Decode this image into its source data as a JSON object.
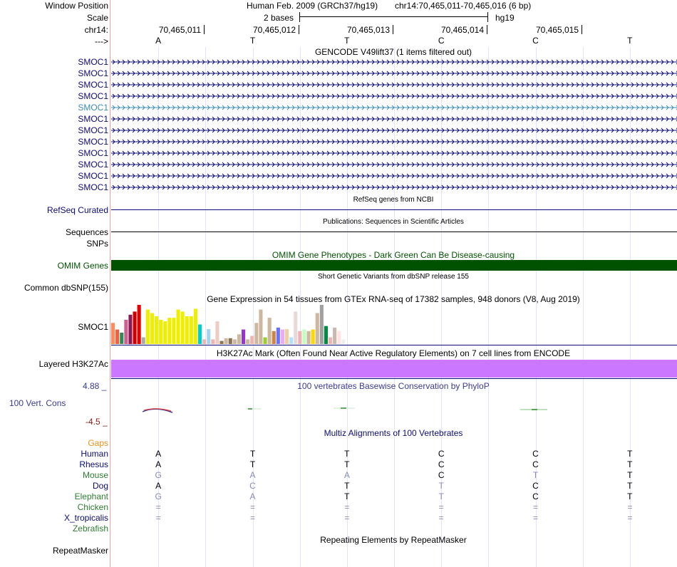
{
  "header": {
    "window_position_label": "Window Position",
    "genome_text": "Human Feb. 2009 (GRCh37/hg19)",
    "position_text": "chr14:70,465,011-70,465,016 (6 bp)",
    "scale_label": "Scale",
    "scale_bases": "2 bases",
    "assembly": "hg19",
    "chrom_label": "chr14:",
    "strand_label": "--->",
    "coords": [
      "70,465,011",
      "70,465,012",
      "70,465,013",
      "70,465,014",
      "70,465,015"
    ],
    "bases": [
      "A",
      "T",
      "T",
      "C",
      "C",
      "T"
    ]
  },
  "gencode": {
    "title": "GENCODE V49lift37 (1 items filtered out)",
    "gene_labels": [
      "SMOC1",
      "SMOC1",
      "SMOC1",
      "SMOC1",
      "SMOC1",
      "SMOC1",
      "SMOC1",
      "SMOC1",
      "SMOC1",
      "SMOC1",
      "SMOC1",
      "SMOC1"
    ],
    "highlight_row": 4,
    "colors": {
      "normal": "#0c0c78",
      "highlight": "#3b8db3"
    }
  },
  "refseq": {
    "title": "RefSeq genes from NCBI",
    "label": "RefSeq Curated",
    "color": "#0c0c78"
  },
  "publications": {
    "title": "Publications: Sequences in Scientific Articles",
    "label": "Sequences"
  },
  "snps": {
    "label": "SNPs"
  },
  "omim": {
    "title": "OMIM Gene Phenotypes - Dark Green Can Be Disease-causing",
    "label": "OMIM Genes",
    "color": "#005200"
  },
  "dbsnp": {
    "title": "Short Genetic Variants from dbSNP release 155",
    "label": "Common dbSNP(155)"
  },
  "gtex": {
    "title": "Gene Expression in 54 tissues from GTEx RNA-seq of 17382 samples, 948 donors (V8, Aug 2019)",
    "label": "SMOC1",
    "bars": [
      {
        "v": 0.54,
        "c": "#ff8c5a"
      },
      {
        "v": 0.37,
        "c": "#ee6040"
      },
      {
        "v": 0.29,
        "c": "#2e8b57"
      },
      {
        "v": 0.62,
        "c": "#cd6090"
      },
      {
        "v": 0.75,
        "c": "#8b1a55"
      },
      {
        "v": 0.83,
        "c": "#cd0000"
      },
      {
        "v": 1.0,
        "c": "#e60000"
      },
      {
        "v": 0.17,
        "c": "#aaaaaa"
      },
      {
        "v": 0.88,
        "c": "#eeee00"
      },
      {
        "v": 0.79,
        "c": "#eeee00"
      },
      {
        "v": 0.71,
        "c": "#eeee00"
      },
      {
        "v": 0.62,
        "c": "#eeee00"
      },
      {
        "v": 0.58,
        "c": "#eeee00"
      },
      {
        "v": 0.67,
        "c": "#eeee00"
      },
      {
        "v": 0.67,
        "c": "#eeee00"
      },
      {
        "v": 0.88,
        "c": "#eeee00"
      },
      {
        "v": 0.83,
        "c": "#eeee00"
      },
      {
        "v": 0.71,
        "c": "#eeee00"
      },
      {
        "v": 0.71,
        "c": "#eeee00"
      },
      {
        "v": 0.9,
        "c": "#eeee00"
      },
      {
        "v": 0.5,
        "c": "#00cdcd"
      },
      {
        "v": 0.12,
        "c": "#eeb4b4"
      },
      {
        "v": 0.38,
        "c": "#a4d3ee"
      },
      {
        "v": 0.12,
        "c": "#eeb4b4"
      },
      {
        "v": 0.58,
        "c": "#eeccc4"
      },
      {
        "v": 0.08,
        "c": "#8b7355"
      },
      {
        "v": 0.15,
        "c": "#cdb79e"
      },
      {
        "v": 0.15,
        "c": "#8b7355"
      },
      {
        "v": 0.12,
        "c": "#cdb79e"
      },
      {
        "v": 0.25,
        "c": "#cdb79e"
      },
      {
        "v": 0.37,
        "c": "#9a32cd"
      },
      {
        "v": 0.12,
        "c": "#cdb79e"
      },
      {
        "v": 0.21,
        "c": "#eeb4b4"
      },
      {
        "v": 0.54,
        "c": "#cdb79e"
      },
      {
        "v": 0.88,
        "c": "#cdb79e"
      },
      {
        "v": 0.17,
        "c": "#9acd32"
      },
      {
        "v": 0.67,
        "c": "#cdb79e"
      },
      {
        "v": 0.33,
        "c": "#cd853f"
      },
      {
        "v": 0.42,
        "c": "#6a70ff"
      },
      {
        "v": 0.37,
        "c": "#eeaaee"
      },
      {
        "v": 0.38,
        "c": "#eecfa1"
      },
      {
        "v": 0.17,
        "c": "#b0e2ff"
      },
      {
        "v": 0.83,
        "c": "#e8d8d8"
      },
      {
        "v": 0.33,
        "c": "#eeb4b4"
      },
      {
        "v": 0.37,
        "c": "#c1ffc1"
      },
      {
        "v": 0.33,
        "c": "#cdb79e"
      },
      {
        "v": 0.37,
        "c": "#ffd700"
      },
      {
        "v": 0.79,
        "c": "#cdb79e"
      },
      {
        "v": 1.0,
        "c": "#a0a0a0"
      },
      {
        "v": 0.46,
        "c": "#008b45"
      },
      {
        "v": 0.17,
        "c": "#eeb4b4"
      },
      {
        "v": 0.42,
        "c": "#c8b8b0"
      },
      {
        "v": 0.33,
        "c": "#ffe4e1"
      },
      {
        "v": 0.12,
        "c": "#eeeeee"
      }
    ]
  },
  "h3k27ac": {
    "title": "H3K27Ac Mark (Often Found Near Active Regulatory Elements) on 7 cell lines from ENCODE",
    "label": "Layered H3K27Ac",
    "color": "#cc77ff"
  },
  "phylop": {
    "title": "100 vertebrates Basewise Conservation by PhyloP",
    "label": "100 Vert. Cons",
    "max_label": "4.88 _",
    "min_label": "-4.5 _",
    "title_color": "#3a3a9a",
    "max_color": "#3a3a9a",
    "min_color": "#8b1a1a"
  },
  "multiz": {
    "title": "Multiz Alignments of 100 Vertebrates",
    "title_color": "#0c0c78",
    "gaps_label": "Gaps",
    "gaps_color": "#e8901a",
    "species": [
      {
        "name": "Human",
        "color": "#0c0c78",
        "bases": [
          "A",
          "T",
          "T",
          "C",
          "C",
          "T"
        ]
      },
      {
        "name": "Rhesus",
        "color": "#0c0c78",
        "bases": [
          "A",
          "T",
          "T",
          "C",
          "C",
          "T"
        ]
      },
      {
        "name": "Mouse",
        "color": "#2e7d32",
        "bases": [
          "G",
          "A",
          "A",
          "C",
          "T",
          "T"
        ]
      },
      {
        "name": "Dog",
        "color": "#0c0c78",
        "bases": [
          "A",
          "C",
          "T",
          "T",
          "C",
          "T"
        ]
      },
      {
        "name": "Elephant",
        "color": "#2e7d32",
        "bases": [
          "G",
          "A",
          "T",
          "T",
          "C",
          "T"
        ]
      },
      {
        "name": "Chicken",
        "color": "#2e7d32",
        "bases": [
          "=",
          "=",
          "=",
          "=",
          "=",
          "="
        ]
      },
      {
        "name": "X_tropicalis",
        "color": "#0c0c78",
        "bases": [
          "=",
          "=",
          "=",
          "=",
          "=",
          "="
        ]
      },
      {
        "name": "Zebrafish",
        "color": "#2e7d32",
        "bases": [
          "",
          "",
          "",
          "",
          "",
          ""
        ]
      }
    ],
    "mismatch_map": {
      "Mouse": [
        1,
        1,
        1,
        0,
        1,
        0
      ],
      "Dog": [
        0,
        1,
        0,
        1,
        0,
        0
      ],
      "Elephant": [
        1,
        1,
        0,
        1,
        0,
        0
      ],
      "Chicken": [
        1,
        1,
        1,
        1,
        1,
        1
      ],
      "X_tropicalis": [
        1,
        1,
        1,
        1,
        1,
        1
      ]
    }
  },
  "repeatmasker": {
    "title": "Repeating Elements by RepeatMasker",
    "label": "RepeatMasker"
  }
}
